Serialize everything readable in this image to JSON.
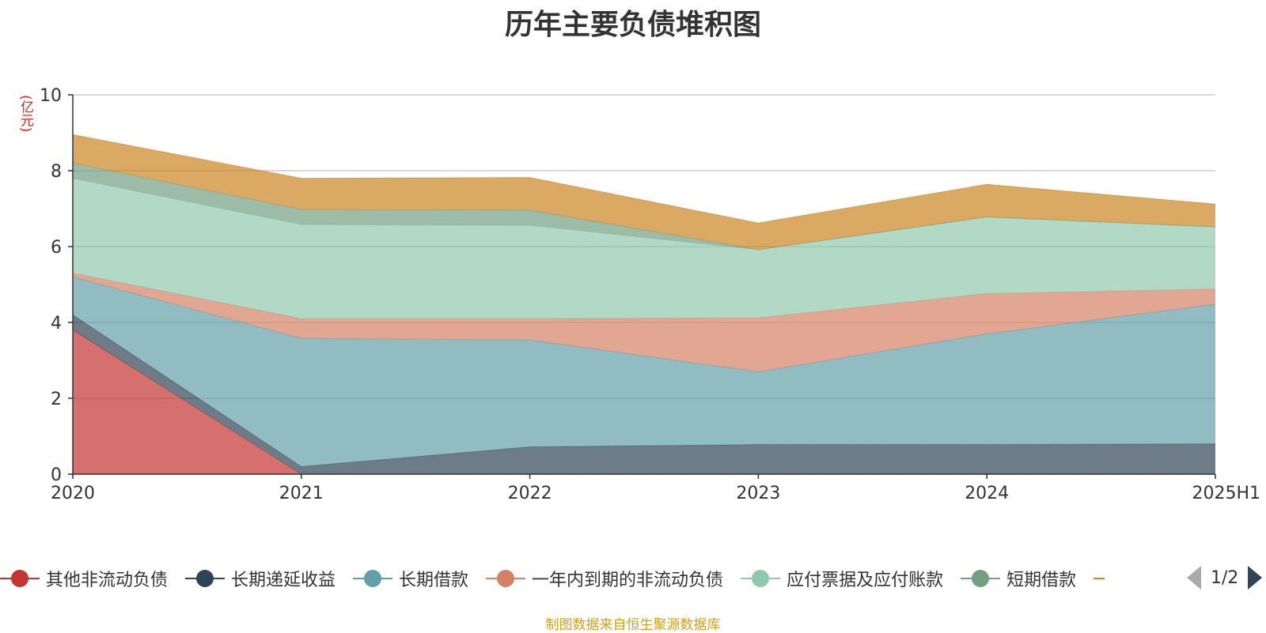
{
  "title": "历年主要负债堆积图",
  "unit_label": "(亿元)",
  "source": "制图数据来自恒生聚源数据库",
  "pager": {
    "text": "1/2",
    "prev_icon": "triangle-left-icon",
    "next_icon": "triangle-right-icon"
  },
  "chart_data": {
    "type": "area",
    "stacked": true,
    "title": "历年主要负债堆积图",
    "ylabel": "(亿元)",
    "xlabel": "",
    "x": [
      "2020",
      "2021",
      "2022",
      "2023",
      "2024",
      "2025H1"
    ],
    "ylim": [
      0,
      10
    ],
    "yticks": [
      0,
      2,
      4,
      6,
      8,
      10
    ],
    "grid": true,
    "legend_position": "bottom",
    "series": [
      {
        "name": "其他非流动负债",
        "color": "#c23531",
        "values": [
          3.8,
          0.0,
          0.0,
          0.0,
          0.0,
          0.0
        ]
      },
      {
        "name": "长期递延收益",
        "color": "#2f4554",
        "values": [
          0.4,
          0.2,
          0.72,
          0.78,
          0.78,
          0.8
        ]
      },
      {
        "name": "长期借款",
        "color": "#61a0a8",
        "values": [
          1.0,
          3.38,
          2.82,
          1.92,
          2.92,
          3.68
        ]
      },
      {
        "name": "一年内到期的非流动负债",
        "color": "#d48265",
        "values": [
          0.1,
          0.52,
          0.56,
          1.42,
          1.06,
          0.4
        ]
      },
      {
        "name": "应付票据及应付账款",
        "color": "#91c7ae",
        "values": [
          2.5,
          2.48,
          2.46,
          1.8,
          2.02,
          1.64
        ]
      },
      {
        "name": "短期借款",
        "color": "#749f83",
        "values": [
          0.4,
          0.4,
          0.4,
          0.0,
          0.0,
          0.0
        ]
      },
      {
        "name": "",
        "color": "#ca8622",
        "values": [
          0.75,
          0.82,
          0.86,
          0.7,
          0.86,
          0.6
        ]
      }
    ]
  }
}
